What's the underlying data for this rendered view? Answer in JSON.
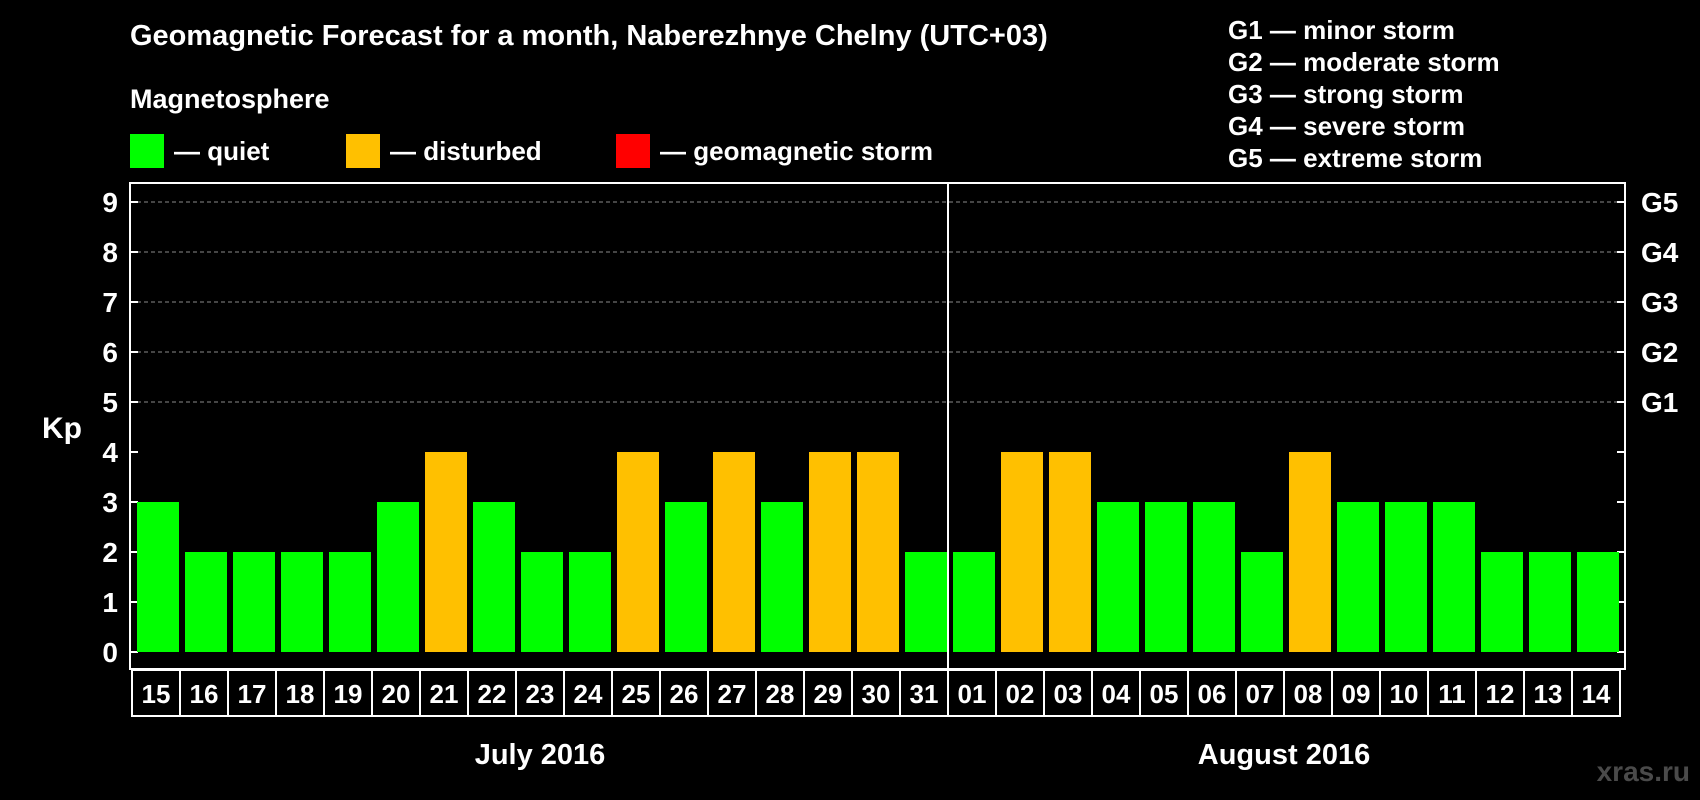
{
  "chart_data": {
    "type": "bar",
    "title": "Geomagnetic Forecast for a month, Naberezhnye Chelny (UTC+03)",
    "ylabel": "Kp",
    "ylim": [
      0,
      9
    ],
    "yticks": [
      "0",
      "1",
      "2",
      "3",
      "4",
      "5",
      "6",
      "7",
      "8",
      "9"
    ],
    "g_axis": [
      {
        "kp": 5,
        "label": "G1"
      },
      {
        "kp": 6,
        "label": "G2"
      },
      {
        "kp": 7,
        "label": "G3"
      },
      {
        "kp": 8,
        "label": "G4"
      },
      {
        "kp": 9,
        "label": "G5"
      }
    ],
    "categories": [
      "15",
      "16",
      "17",
      "18",
      "19",
      "20",
      "21",
      "22",
      "23",
      "24",
      "25",
      "26",
      "27",
      "28",
      "29",
      "30",
      "31",
      "01",
      "02",
      "03",
      "04",
      "05",
      "06",
      "07",
      "08",
      "09",
      "10",
      "11",
      "12",
      "13",
      "14"
    ],
    "values": [
      3,
      2,
      2,
      2,
      2,
      3,
      4,
      3,
      2,
      2,
      4,
      3,
      4,
      3,
      4,
      4,
      2,
      2,
      4,
      4,
      3,
      3,
      3,
      2,
      4,
      3,
      3,
      3,
      2,
      2,
      2
    ],
    "months": [
      {
        "label": "July 2016",
        "count": 17
      },
      {
        "label": "August 2016",
        "count": 14
      }
    ],
    "grid": true
  },
  "magnetosphere": {
    "label": "Magnetosphere",
    "levels": [
      {
        "name": "quiet",
        "text": "— quiet",
        "color": "#00ff00"
      },
      {
        "name": "disturbed",
        "text": "— disturbed",
        "color": "#ffc000"
      },
      {
        "name": "storm",
        "text": "— geomagnetic storm",
        "color": "#ff0000"
      }
    ]
  },
  "g_scale": [
    "G1 — minor storm",
    "G2 — moderate storm",
    "G3 — strong storm",
    "G4 — severe storm",
    "G5 — extreme storm"
  ],
  "watermark": "xras.ru"
}
